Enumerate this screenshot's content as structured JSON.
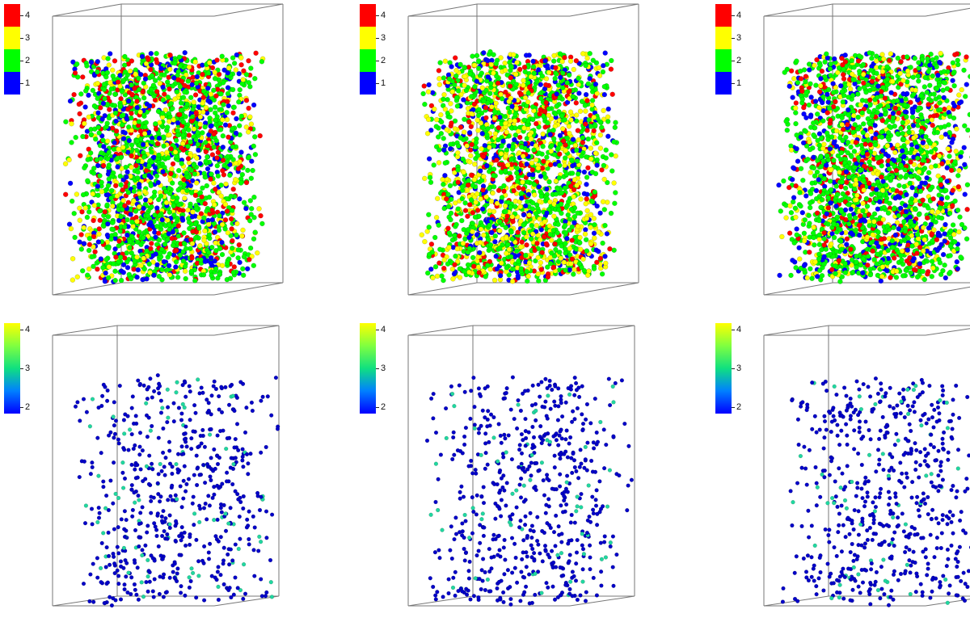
{
  "panels": [
    {
      "legend_type": "discrete",
      "legend_labels": [
        "4",
        "3",
        "2",
        "1"
      ],
      "legend_colors": [
        "#ff0000",
        "#ffff00",
        "#00ff00",
        "#0000ff"
      ],
      "particle_colors": [
        "#00ff00",
        "#00ff00",
        "#00ff00",
        "#ffff00",
        "#0000ff",
        "#ff0000"
      ]
    },
    {
      "legend_type": "discrete",
      "legend_labels": [
        "4",
        "3",
        "2",
        "1"
      ],
      "legend_colors": [
        "#ff0000",
        "#ffff00",
        "#00ff00",
        "#0000ff"
      ],
      "particle_colors": [
        "#00ff00",
        "#00ff00",
        "#00ff00",
        "#ffff00",
        "#ffff00",
        "#0000ff",
        "#ff0000"
      ]
    },
    {
      "legend_type": "discrete",
      "legend_labels": [
        "4",
        "3",
        "2",
        "1"
      ],
      "legend_colors": [
        "#ff0000",
        "#ffff00",
        "#00ff00",
        "#0000ff"
      ],
      "particle_colors": [
        "#00ff00",
        "#00ff00",
        "#00ff00",
        "#ffff00",
        "#0000ff",
        "#ff0000"
      ]
    },
    {
      "legend_type": "continuous",
      "legend_labels": [
        "4",
        "3",
        "2"
      ],
      "legend_colors": [
        "#ffff00",
        "#10e080",
        "#0000ff"
      ],
      "particle_colors": [
        "#0000c8",
        "#0000c8",
        "#0000c8",
        "#0000c8",
        "#0000c8",
        "#0000c8",
        "#0000c8",
        "#0000c8",
        "#20d8a0"
      ]
    },
    {
      "legend_type": "continuous",
      "legend_labels": [
        "4",
        "3",
        "2"
      ],
      "legend_colors": [
        "#ffff00",
        "#10e080",
        "#0000ff"
      ],
      "particle_colors": [
        "#0000c8",
        "#0000c8",
        "#0000c8",
        "#0000c8",
        "#0000c8",
        "#0000c8",
        "#0000c8",
        "#0000c8",
        "#20d8a0"
      ]
    },
    {
      "legend_type": "continuous",
      "legend_labels": [
        "4",
        "3",
        "2"
      ],
      "legend_colors": [
        "#ffff00",
        "#10e080",
        "#0000ff"
      ],
      "particle_colors": [
        "#0000c8",
        "#0000c8",
        "#0000c8",
        "#0000c8",
        "#0000c8",
        "#0000c8",
        "#0000c8",
        "#0000c8",
        "#20d8a0"
      ]
    }
  ]
}
